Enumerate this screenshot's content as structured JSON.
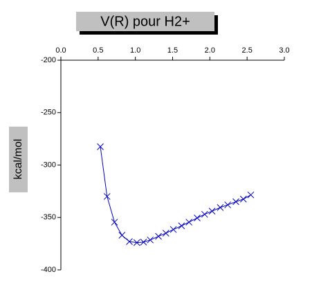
{
  "chart_data": {
    "type": "line",
    "title": "V(R) pour H2+",
    "y_label": "kcal/mol",
    "xlim": [
      0,
      3
    ],
    "xticks": [
      {
        "value": 0,
        "label": "0.0"
      },
      0.5,
      {
        "value": 1,
        "label": "1.0"
      },
      1.5,
      {
        "value": 2,
        "label": "2.0"
      },
      2.5,
      {
        "value": 3,
        "label": "3.0"
      }
    ],
    "ylim": [
      -200,
      -400
    ],
    "yticks": [
      -200,
      -250,
      -300,
      -350,
      -400
    ],
    "series": [
      {
        "name": "V(R)",
        "color": "#0000c0",
        "x": [
          0.53,
          0.62,
          0.72,
          0.82,
          0.92,
          1.02,
          1.11,
          1.2,
          1.31,
          1.41,
          1.51,
          1.62,
          1.72,
          1.83,
          1.93,
          2.03,
          2.14,
          2.24,
          2.35,
          2.45,
          2.55
        ],
        "values": [
          -282.5,
          -330,
          -354.5,
          -367,
          -373,
          -374,
          -373.5,
          -371.5,
          -368,
          -365,
          -361.5,
          -358,
          -354.5,
          -350.5,
          -347,
          -344,
          -340.5,
          -338,
          -335,
          -332.5,
          -328.5
        ]
      }
    ]
  }
}
